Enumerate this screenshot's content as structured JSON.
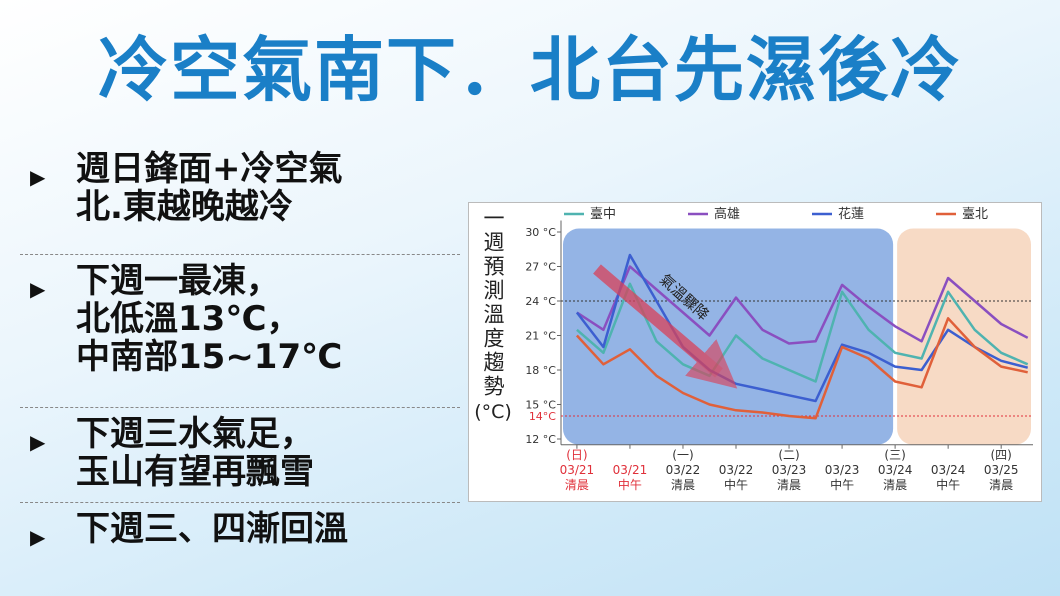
{
  "header": {
    "title": "冷空氣南下．北台先濕後冷"
  },
  "bullets": [
    [
      "週日鋒面+冷空氣",
      "北.東越晚越冷"
    ],
    [
      "下週一最凍，",
      "北低溫13℃，",
      "中南部15~17℃"
    ],
    [
      "下週三水氣足，",
      "玉山有望再飄雪"
    ],
    [
      "下週三、四漸回溫"
    ]
  ],
  "chart_data": {
    "type": "line",
    "title": "一週預測溫度趨勢",
    "y_unit": "(°C)",
    "x": [
      0,
      0.5,
      1,
      1.5,
      2,
      2.5,
      3,
      3.5,
      4,
      4.5,
      5,
      5.5,
      6,
      6.5,
      7,
      7.5,
      8,
      8.5
    ],
    "xlim": [
      -0.3,
      8.6
    ],
    "xticks": [
      {
        "value": 0,
        "label": "03/21"
      },
      {
        "value": 1,
        "label": "03/21"
      },
      {
        "value": 2,
        "label": "03/22"
      },
      {
        "value": 3,
        "label": "03/22"
      },
      {
        "value": 4,
        "label": "03/23"
      },
      {
        "value": 5,
        "label": "03/23"
      },
      {
        "value": 6,
        "label": "03/24"
      },
      {
        "value": 7,
        "label": "03/24"
      },
      {
        "value": 8,
        "label": "03/25"
      }
    ],
    "x_days": [
      "(日)",
      null,
      "(一)",
      null,
      "(二)",
      null,
      "(三)",
      null,
      "(四)"
    ],
    "x_periods": [
      "清晨",
      "中午",
      "清晨",
      "中午",
      "清晨",
      "中午",
      "清晨",
      "中午",
      "清晨"
    ],
    "x_label_colors": [
      "#e0303a",
      "#e0303a",
      "#333",
      "#333",
      "#333",
      "#333",
      "#333",
      "#333",
      "#333"
    ],
    "ylim": [
      11.5,
      31
    ],
    "yticks": [
      {
        "value": 12,
        "label": "12 °C"
      },
      {
        "value": 15,
        "label": "15 °C"
      },
      {
        "value": 18,
        "label": "18 °C"
      },
      {
        "value": 21,
        "label": "21 °C"
      },
      {
        "value": 24,
        "label": "24 °C"
      },
      {
        "value": 27,
        "label": "27 °C"
      },
      {
        "value": 30,
        "label": "30 °C"
      }
    ],
    "reference_lines": [
      {
        "value": 24,
        "color": "#333"
      },
      {
        "value": 14,
        "color": "#e0303a",
        "label": "14°C"
      }
    ],
    "regions": [
      {
        "from": -0.3,
        "to": 6,
        "color": "#8eb0e4"
      },
      {
        "from": 6,
        "to": 8.6,
        "color": "#f7d8c2"
      }
    ],
    "annotation": "氣溫驟降",
    "series": [
      {
        "name": "臺中",
        "color": "#4fb3b0",
        "values": [
          21.5,
          19.5,
          25.5,
          20.5,
          18.5,
          17.5,
          21,
          19,
          18,
          17,
          24.8,
          21.5,
          19.5,
          19,
          24.8,
          21.5,
          19.5,
          18.5
        ]
      },
      {
        "name": "高雄",
        "color": "#8a4fc0",
        "values": [
          23,
          21.5,
          27,
          25,
          23,
          21,
          24.3,
          21.5,
          20.3,
          20.5,
          25.4,
          23.5,
          21.8,
          20.5,
          26,
          24,
          22,
          20.8
        ]
      },
      {
        "name": "花蓮",
        "color": "#3c5fd0",
        "values": [
          23,
          20,
          28,
          24,
          20,
          18,
          16.8,
          16.3,
          15.8,
          15.3,
          20.2,
          19.5,
          18.3,
          18,
          21.5,
          20,
          18.8,
          18.2
        ]
      },
      {
        "name": "臺北",
        "color": "#e0603a",
        "values": [
          21,
          18.5,
          19.8,
          17.5,
          16,
          15,
          14.5,
          14.3,
          14,
          13.8,
          20,
          19,
          17,
          16.5,
          22.5,
          20,
          18.3,
          17.8
        ]
      }
    ]
  }
}
